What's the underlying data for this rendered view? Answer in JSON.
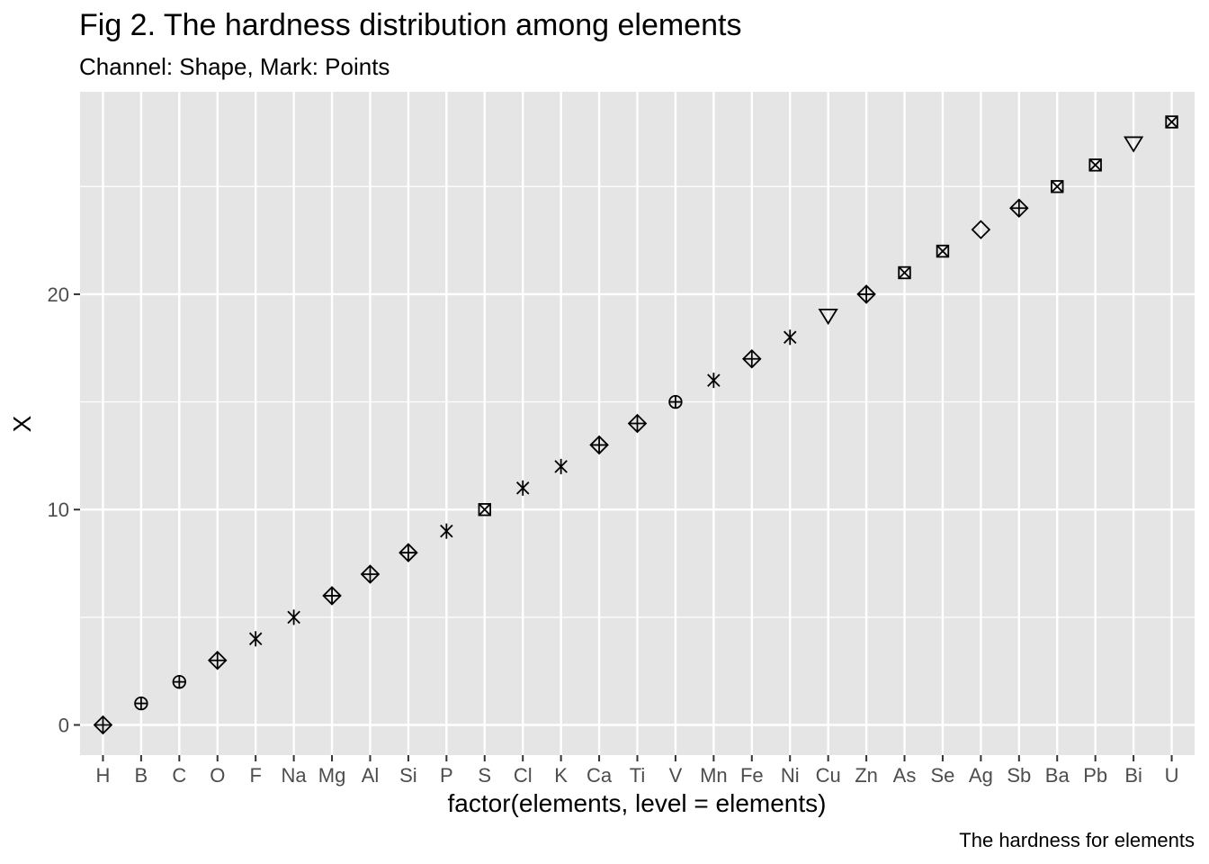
{
  "chart_data": {
    "type": "scatter",
    "title": "Fig 2. The hardness distribution among elements",
    "subtitle": "Channel: Shape, Mark: Points",
    "xlabel": "factor(elements, level = elements)",
    "ylabel": "X",
    "caption": "The hardness for elements",
    "categories": [
      "H",
      "B",
      "C",
      "O",
      "F",
      "Na",
      "Mg",
      "Al",
      "Si",
      "P",
      "S",
      "Cl",
      "K",
      "Ca",
      "Ti",
      "V",
      "Mn",
      "Fe",
      "Ni",
      "Cu",
      "Zn",
      "As",
      "Se",
      "Ag",
      "Sb",
      "Ba",
      "Pb",
      "Bi",
      "U"
    ],
    "values": [
      0,
      1,
      2,
      3,
      4,
      5,
      6,
      7,
      8,
      9,
      10,
      11,
      12,
      13,
      14,
      15,
      16,
      17,
      18,
      19,
      20,
      21,
      22,
      23,
      24,
      25,
      26,
      27,
      28
    ],
    "shapes": [
      "diamond-plus",
      "circle-plus",
      "circle-plus",
      "diamond-plus",
      "asterisk",
      "asterisk",
      "diamond-plus",
      "diamond-plus",
      "diamond-plus",
      "asterisk",
      "square-cross",
      "asterisk",
      "asterisk",
      "diamond-plus",
      "diamond-plus",
      "circle-plus",
      "asterisk",
      "diamond-plus",
      "asterisk",
      "triangle-down",
      "diamond-plus",
      "square-cross",
      "square-cross",
      "diamond",
      "diamond-plus",
      "square-cross",
      "square-cross",
      "triangle-down",
      "square-cross"
    ],
    "ylim": [
      -1.4,
      29.4
    ],
    "yticks": [
      0,
      10,
      20
    ],
    "grid": true,
    "panel_background": "#e5e5e5",
    "grid_color": "#ffffff",
    "point_color": "#000000"
  }
}
